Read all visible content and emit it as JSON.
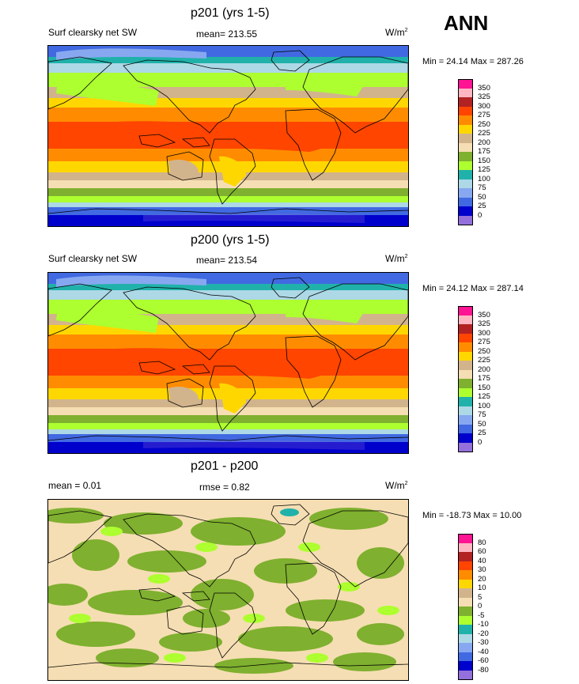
{
  "season": "ANN",
  "panels": [
    {
      "title": "p201 (yrs 1-5)",
      "variable": "Surf clearsky net SW",
      "stat": "mean= 213.55",
      "units": "W/m",
      "units_sup": "2",
      "minmax": "Min =  24.14 Max = 287.26",
      "kind": "abs"
    },
    {
      "title": "p200 (yrs 1-5)",
      "variable": "Surf clearsky net SW",
      "stat": "mean= 213.54",
      "units": "W/m",
      "units_sup": "2",
      "minmax": "Min =  24.12 Max = 287.14",
      "kind": "abs"
    },
    {
      "title": "p201 - p200",
      "variable": "mean =   0.01",
      "stat": "rmse =   0.82",
      "units": "W/m",
      "units_sup": "2",
      "minmax": "Min = -18.73 Max =  10.00",
      "kind": "diff"
    }
  ],
  "colorbar_abs": {
    "labels": [
      "350",
      "325",
      "300",
      "275",
      "250",
      "225",
      "200",
      "175",
      "150",
      "125",
      "100",
      "75",
      "50",
      "25",
      "0"
    ],
    "colors": [
      "#ff1493",
      "#ffb6c1",
      "#b22222",
      "#ff4500",
      "#ff8c00",
      "#ffd700",
      "#d2b48c",
      "#f5deb3",
      "#7fb02f",
      "#adff2f",
      "#20b2aa",
      "#add8e6",
      "#87a8f0",
      "#4169e1",
      "#0000cd",
      "#9370db"
    ]
  },
  "colorbar_diff": {
    "labels": [
      "80",
      "60",
      "40",
      "30",
      "20",
      "10",
      "5",
      "0",
      "-5",
      "-10",
      "-20",
      "-30",
      "-40",
      "-60",
      "-80"
    ],
    "colors": [
      "#ff1493",
      "#ffb6c1",
      "#b22222",
      "#ff4500",
      "#ff8c00",
      "#ffd700",
      "#d2b48c",
      "#f5deb3",
      "#7fb02f",
      "#adff2f",
      "#20b2aa",
      "#add8e6",
      "#87a8f0",
      "#4169e1",
      "#0000cd",
      "#9370db"
    ]
  }
}
